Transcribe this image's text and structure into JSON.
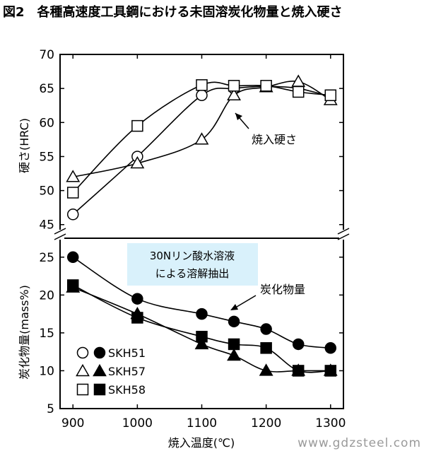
{
  "figure_title": "図2　各種高速度工具鋼における未固溶炭化物量と焼入硬さ",
  "watermark": "www.gdzsteel.com",
  "chart_data": {
    "type": "line",
    "title": "図2　各種高速度工具鋼における未固溶炭化物量と焼入硬さ",
    "xlabel": "焼入温度(℃)",
    "x": [
      900,
      1000,
      1100,
      1150,
      1200,
      1250,
      1300
    ],
    "xlim": [
      880,
      1320
    ],
    "xticks": [
      900,
      1000,
      1100,
      1200,
      1300
    ],
    "grid": false,
    "panels": [
      {
        "id": "hardness",
        "ylabel": "硬さ(HRC)",
        "ylim": [
          43,
          70
        ],
        "yticks": [
          45,
          50,
          55,
          60,
          65,
          70
        ],
        "annotation": "焼入硬さ",
        "series": [
          {
            "name": "SKH51",
            "marker": "circle",
            "filled": false,
            "values": [
              46.5,
              55,
              64,
              65,
              65.3,
              65,
              63.8
            ]
          },
          {
            "name": "SKH57",
            "marker": "triangle",
            "filled": false,
            "values": [
              52,
              54,
              57.5,
              64,
              65.2,
              66,
              63.3
            ]
          },
          {
            "name": "SKH58",
            "marker": "square",
            "filled": false,
            "values": [
              49.7,
              59.5,
              65.5,
              65.4,
              65.4,
              64.5,
              64
            ]
          }
        ]
      },
      {
        "id": "carbide",
        "ylabel": "炭化物量(mass%)",
        "ylim": [
          5,
          27.5
        ],
        "yticks": [
          5,
          10,
          15,
          20,
          25
        ],
        "annotation": "炭化物量",
        "box_text": [
          "30Nリン酸水溶液",
          "による溶解抽出"
        ],
        "series": [
          {
            "name": "SKH51",
            "marker": "circle",
            "filled": true,
            "values": [
              25,
              19.5,
              17.5,
              16.5,
              15.5,
              13.5,
              13
            ]
          },
          {
            "name": "SKH57",
            "marker": "triangle",
            "filled": true,
            "values": [
              21,
              17.5,
              13.5,
              12,
              10,
              10,
              10
            ]
          },
          {
            "name": "SKH58",
            "marker": "square",
            "filled": true,
            "values": [
              21.3,
              17,
              14.5,
              13.5,
              13,
              10,
              10
            ]
          }
        ]
      }
    ],
    "legend": {
      "placement": "bottom-left",
      "entries": [
        "SKH51",
        "SKH57",
        "SKH58"
      ]
    }
  }
}
